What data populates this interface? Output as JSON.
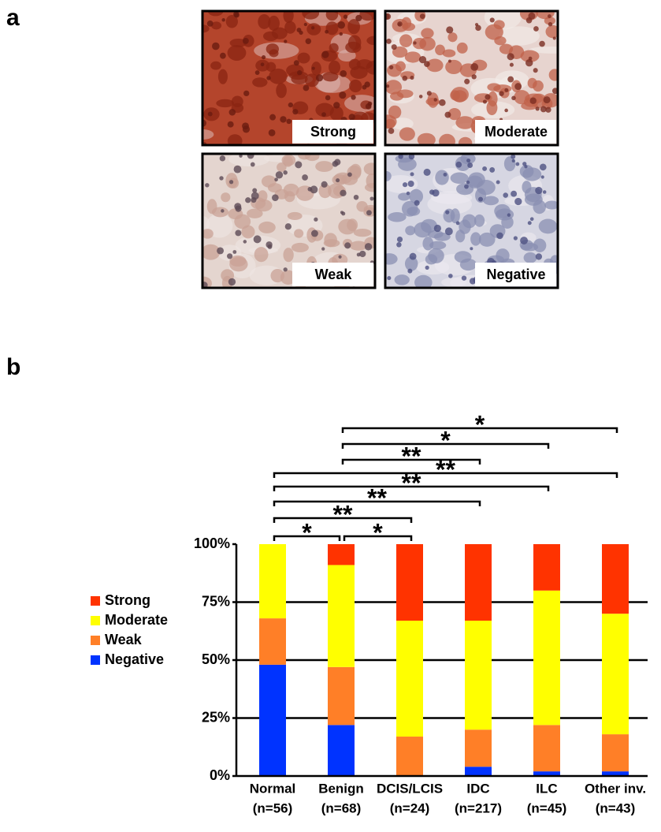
{
  "panel_a": {
    "label": "a",
    "images": [
      {
        "label": "Strong"
      },
      {
        "label": "Moderate"
      },
      {
        "label": "Weak"
      },
      {
        "label": "Negative"
      }
    ]
  },
  "chart_data": {
    "type": "stacked_bar",
    "panel_label": "b",
    "categories": [
      "Normal",
      "Benign",
      "DCIS/LCIS",
      "IDC",
      "ILC",
      "Other inv."
    ],
    "sample_sizes": [
      "(n=56)",
      "(n=68)",
      "(n=24)",
      "(n=217)",
      "(n=45)",
      "(n=43)"
    ],
    "series": [
      {
        "name": "Negative",
        "color": "#0033ff",
        "values": [
          48,
          22,
          0,
          4,
          2,
          2
        ]
      },
      {
        "name": "Weak",
        "color": "#ff7f27",
        "values": [
          20,
          25,
          17,
          16,
          20,
          16
        ]
      },
      {
        "name": "Moderate",
        "color": "#ffff00",
        "values": [
          32,
          44,
          50,
          47,
          58,
          52
        ]
      },
      {
        "name": "Strong",
        "color": "#ff3300",
        "values": [
          0,
          9,
          33,
          33,
          20,
          30
        ]
      }
    ],
    "ylim": [
      0,
      100
    ],
    "yticks": [
      {
        "value": 0,
        "label": "0%"
      },
      {
        "value": 25,
        "label": "25%"
      },
      {
        "value": 50,
        "label": "50%"
      },
      {
        "value": 75,
        "label": "75%"
      },
      {
        "value": 100,
        "label": "100%"
      }
    ],
    "grid": true,
    "comparisons": [
      {
        "groups": [
          "Normal",
          "Benign"
        ],
        "label": "*"
      },
      {
        "groups": [
          "Benign",
          "DCIS/LCIS"
        ],
        "label": "*"
      },
      {
        "groups": [
          "Normal",
          "DCIS/LCIS"
        ],
        "label": "**"
      },
      {
        "groups": [
          "Normal",
          "IDC"
        ],
        "label": "**"
      },
      {
        "groups": [
          "Normal",
          "ILC"
        ],
        "label": "**"
      },
      {
        "groups": [
          "Normal",
          "Other inv."
        ],
        "label": "**"
      },
      {
        "groups": [
          "Benign",
          "IDC"
        ],
        "label": "**"
      },
      {
        "groups": [
          "Benign",
          "ILC"
        ],
        "label": "*"
      },
      {
        "groups": [
          "Benign",
          "Other inv."
        ],
        "label": "*"
      }
    ]
  }
}
